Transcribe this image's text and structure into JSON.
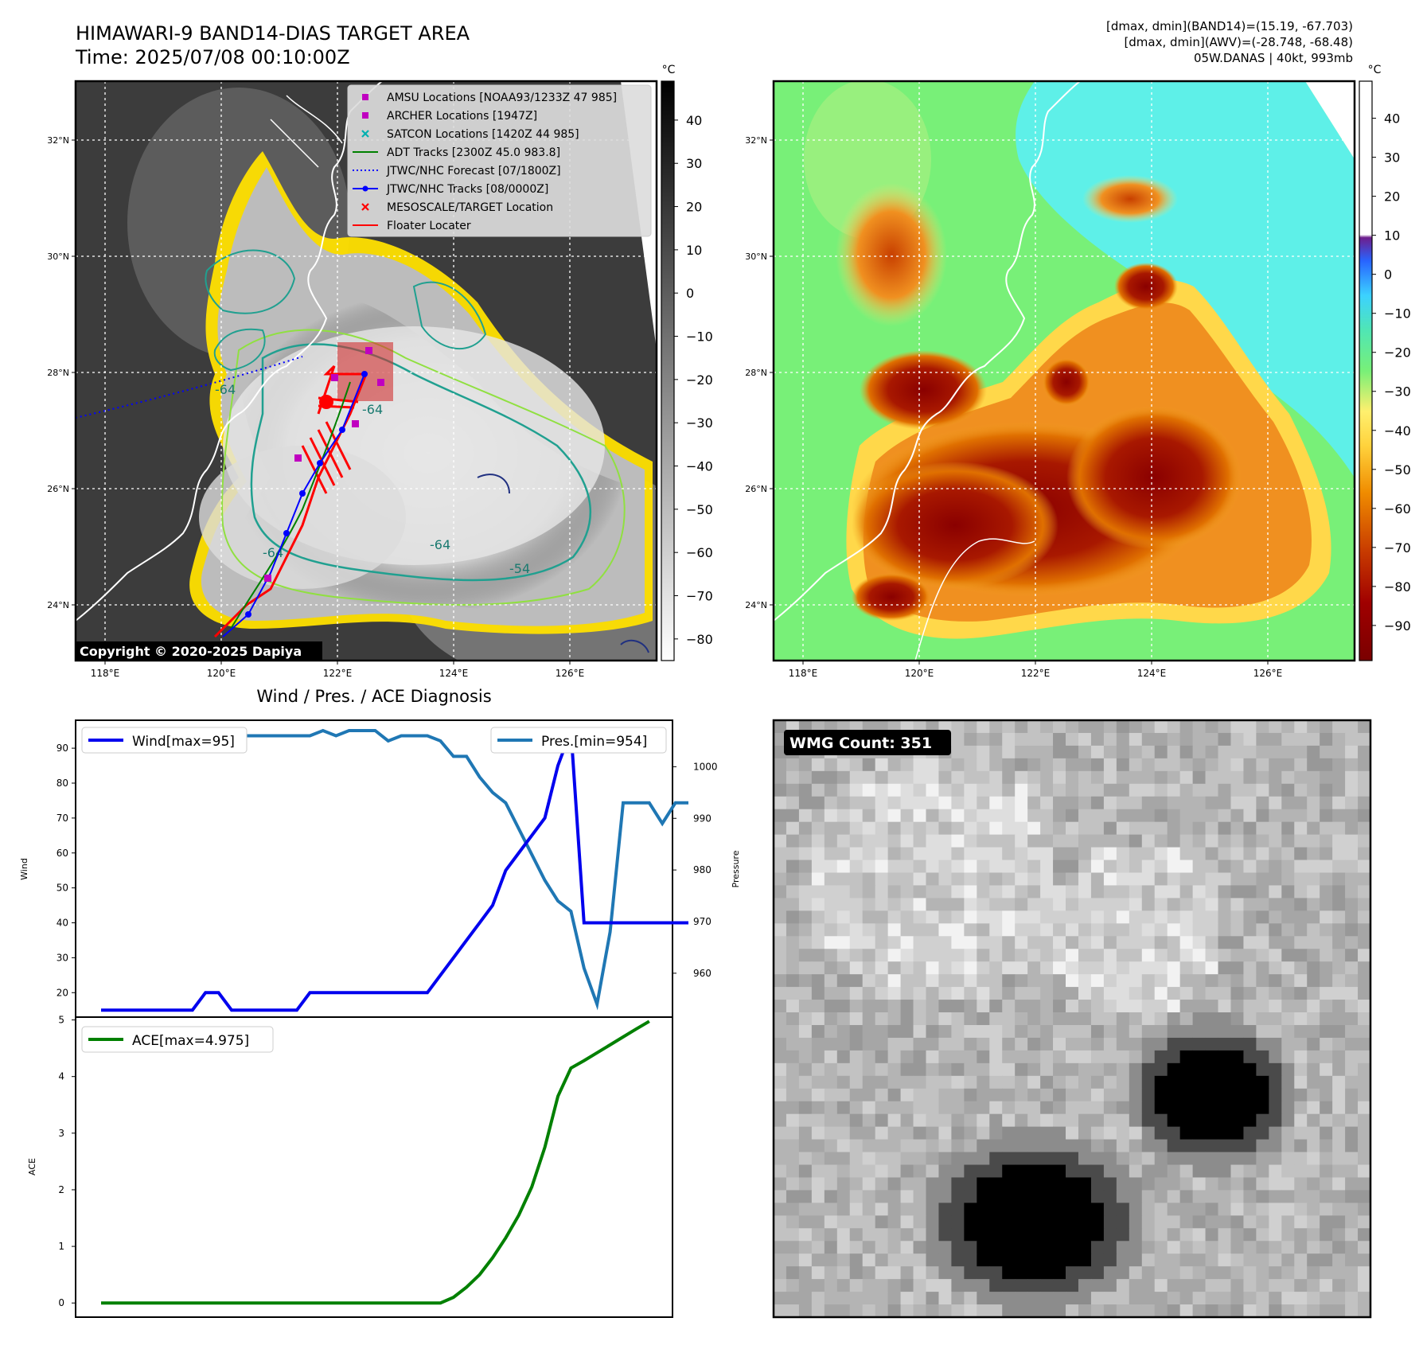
{
  "header": {
    "title": "HIMAWARI-9 BAND14-DIAS TARGET AREA",
    "time": "Time: 2025/07/08 00:10:00Z",
    "stats": [
      "[dmax, dmin](BAND14)=(15.19, -67.703)",
      "[dmax, dmin](AWV)=(-28.748, -68.48)",
      "05W.DANAS | 40kt, 993mb"
    ]
  },
  "maps": {
    "lat_ticks": [
      "32°N",
      "30°N",
      "28°N",
      "26°N",
      "24°N"
    ],
    "lon_ticks": [
      "118°E",
      "120°E",
      "122°E",
      "124°E",
      "126°E"
    ],
    "contour_labels": [
      "-64",
      "-64",
      "-64",
      "-64",
      "-54"
    ],
    "copyright": "Copyright © 2020-2025 Dapiya",
    "unit": "°C",
    "left_colorbar_ticks": [
      "40",
      "30",
      "20",
      "10",
      "0",
      "−10",
      "−20",
      "−30",
      "−40",
      "−50",
      "−60",
      "−70",
      "−80"
    ],
    "right_colorbar_ticks": [
      "40",
      "30",
      "20",
      "10",
      "0",
      "−10",
      "−20",
      "−30",
      "−40",
      "−50",
      "−60",
      "−70",
      "−80",
      "−90"
    ],
    "legend": [
      {
        "label": "AMSU Locations [NOAA93/1233Z 47 985]",
        "color": "#c000c0",
        "marker": "square"
      },
      {
        "label": "ARCHER Locations [1947Z]",
        "color": "#c000c0",
        "marker": "square"
      },
      {
        "label": "SATCON Locations [1420Z 44 985]",
        "color": "#00b0b0",
        "marker": "x"
      },
      {
        "label": "ADT Tracks [2300Z 45.0 983.8]",
        "color": "#008000",
        "marker": "line"
      },
      {
        "label": "JTWC/NHC Forecast [07/1800Z]",
        "color": "#0000ff",
        "marker": "dotted"
      },
      {
        "label": "JTWC/NHC Tracks [08/0000Z]",
        "color": "#0000ff",
        "marker": "line-dot"
      },
      {
        "label": "MESOSCALE/TARGET Location",
        "color": "#ff0000",
        "marker": "x"
      },
      {
        "label": "Floater Locater",
        "color": "#ff0000",
        "marker": "line"
      }
    ],
    "colors": {
      "yellow": "#ffe000",
      "lime": "#90e040",
      "teal": "#20a090",
      "navy": "#203080"
    }
  },
  "diag_title": "Wind / Pres. / ACE Diagnosis",
  "wmg": {
    "label": "WMG Count: 351"
  },
  "chart_data": [
    {
      "type": "line",
      "name": "wind_pressure",
      "ylabel": "Wind",
      "ylabel2": "Pressure",
      "ylim": [
        13,
        98
      ],
      "ylim2": [
        951.5,
        1009
      ],
      "yticks": [
        20,
        30,
        40,
        50,
        60,
        70,
        80,
        90
      ],
      "yticks2": [
        960,
        970,
        980,
        990,
        1000
      ],
      "legend_wind": "Wind[max=95]",
      "legend_pres": "Pres.[min=954]",
      "series": [
        {
          "axis": "left",
          "color": "#0000ee",
          "values": [
            15,
            15,
            15,
            15,
            15,
            15,
            15,
            15,
            20,
            20,
            15,
            15,
            15,
            15,
            15,
            15,
            20,
            20,
            20,
            20,
            20,
            20,
            20,
            20,
            20,
            20,
            25,
            30,
            35,
            40,
            45,
            55,
            60,
            65,
            70,
            85,
            95,
            40,
            40,
            40,
            40,
            40,
            40,
            40,
            40,
            40
          ]
        },
        {
          "axis": "right",
          "color": "#1f77b4",
          "values": [
            1007,
            1007,
            1007,
            1007,
            1006,
            1005,
            1005,
            1005,
            1005,
            1005,
            1005,
            1006,
            1006,
            1006,
            1006,
            1006,
            1006,
            1007,
            1006,
            1007,
            1007,
            1007,
            1005,
            1006,
            1006,
            1006,
            1005,
            1002,
            1002,
            998,
            995,
            993,
            988,
            983,
            978,
            974,
            972,
            961,
            954,
            968,
            993,
            993,
            993,
            989,
            993,
            993
          ]
        }
      ]
    },
    {
      "type": "line",
      "name": "ace",
      "ylabel": "ACE",
      "ylim": [
        -0.25,
        5.05
      ],
      "yticks": [
        0,
        1,
        2,
        3,
        4,
        5
      ],
      "legend_ace": "ACE[max=4.975]",
      "series": [
        {
          "color": "#008000",
          "values": [
            0,
            0,
            0,
            0,
            0,
            0,
            0,
            0,
            0,
            0,
            0,
            0,
            0,
            0,
            0,
            0,
            0,
            0,
            0,
            0,
            0,
            0,
            0,
            0,
            0,
            0,
            0,
            0.1,
            0.28,
            0.5,
            0.8,
            1.15,
            1.55,
            2.05,
            2.75,
            3.65,
            4.15,
            4.28,
            4.42,
            4.56,
            4.7,
            4.84,
            4.975
          ]
        }
      ]
    }
  ]
}
